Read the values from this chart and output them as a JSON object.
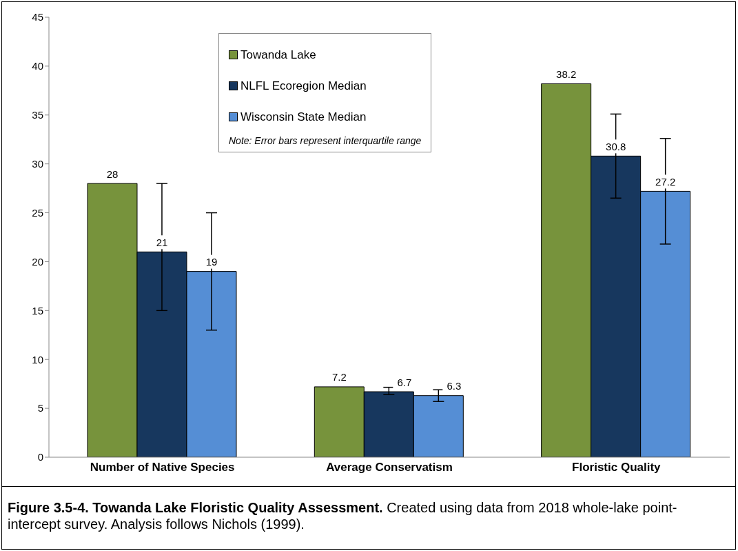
{
  "chart_data": {
    "type": "bar",
    "title": "Figure 3.5-4.  Towanda Lake Floristic Quality Assessment.",
    "annotations": [
      "Note: Error bars represent interquartile range",
      "Created using data from 2018 whole-lake point-intercept survey.  Analysis follows Nichols (1999)."
    ],
    "categories": [
      "Number of Native Species",
      "Average Conservatism",
      "Floristic Quality"
    ],
    "series": [
      {
        "name": "Towanda Lake",
        "color": "#77933c",
        "values": [
          28,
          7.2,
          38.2
        ]
      },
      {
        "name": "NLFL Ecoregion Median",
        "color": "#17375e",
        "values": [
          21,
          6.7,
          30.8
        ],
        "errors": [
          [
            15,
            28
          ],
          [
            6.4,
            7.15
          ],
          [
            26.5,
            35.1
          ]
        ]
      },
      {
        "name": "Wisconsin State Median",
        "color": "#558ed5",
        "values": [
          19,
          6.3,
          27.2
        ],
        "errors": [
          [
            13,
            25
          ],
          [
            5.7,
            6.9
          ],
          [
            21.8,
            32.6
          ]
        ]
      }
    ],
    "ylim": [
      0,
      45
    ],
    "yticks": [
      0,
      5,
      10,
      15,
      20,
      25,
      30,
      35,
      40,
      45
    ],
    "data_labels": true,
    "legend": "top"
  }
}
